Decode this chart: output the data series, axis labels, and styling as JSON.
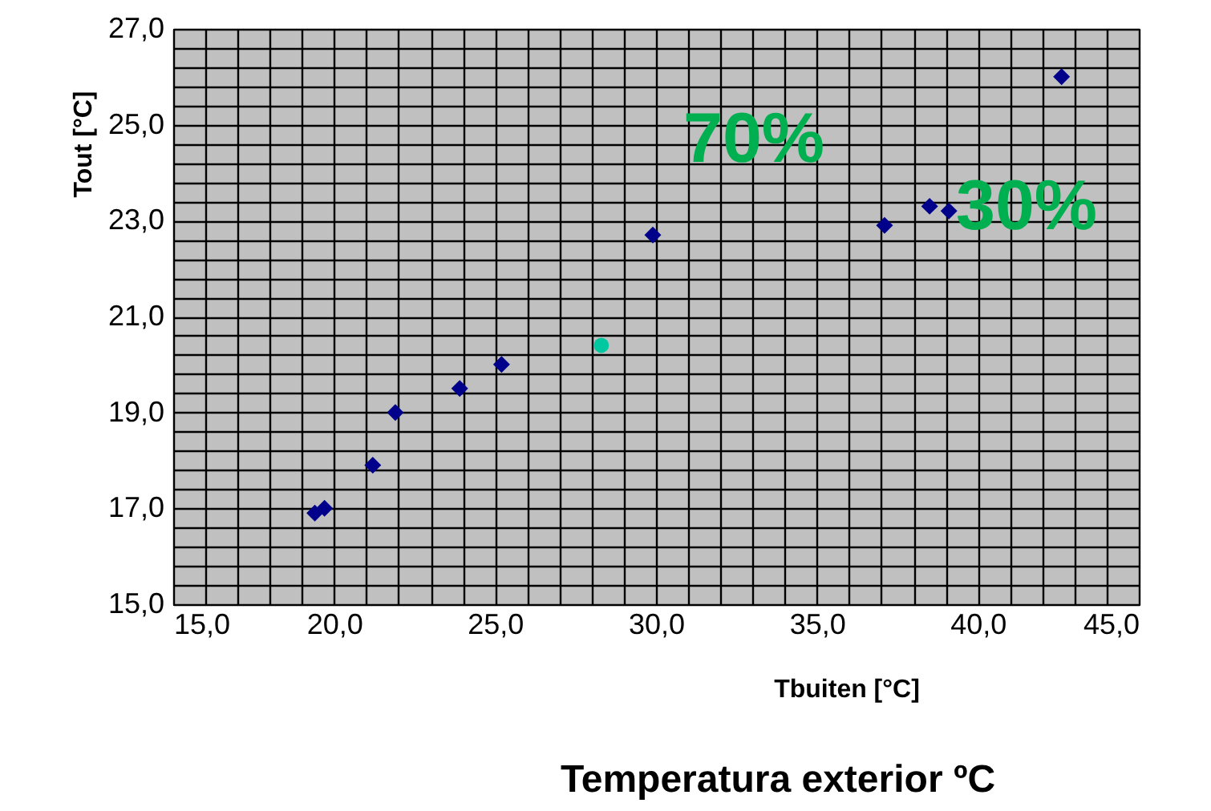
{
  "chart_data": {
    "type": "scatter",
    "xlabel": "Tbuiten [°C]",
    "ylabel": "Tout [°C]",
    "series": [
      {
        "color": "#00008b",
        "marker": "diamond",
        "x": [
          19.4,
          19.7,
          21.2,
          21.9,
          23.9,
          25.2,
          29.9,
          37.1,
          38.5,
          39.1,
          42.6
        ],
        "values": [
          16.9,
          17.0,
          17.9,
          19.0,
          19.5,
          20.0,
          22.7,
          22.9,
          23.3,
          23.2,
          26.0
        ]
      },
      {
        "color": "#00c8a0",
        "marker": "circle",
        "x": [
          28.3
        ],
        "values": [
          20.4
        ]
      }
    ],
    "annotations": [
      "70%",
      "30%",
      "Temperatura exterior ºC"
    ],
    "xlim": [
      15,
      45
    ],
    "ylim": [
      15,
      27
    ],
    "xticks": [
      {
        "value": 15,
        "label": "15,0"
      },
      {
        "value": 16,
        "label": null
      },
      {
        "value": 17,
        "label": null
      },
      {
        "value": 18,
        "label": null
      },
      {
        "value": 19,
        "label": null
      },
      {
        "value": 20,
        "label": "20,0"
      },
      {
        "value": 21,
        "label": null
      },
      {
        "value": 22,
        "label": null
      },
      {
        "value": 23,
        "label": null
      },
      {
        "value": 24,
        "label": null
      },
      {
        "value": 25,
        "label": "25,0"
      },
      {
        "value": 26,
        "label": null
      },
      {
        "value": 27,
        "label": null
      },
      {
        "value": 28,
        "label": null
      },
      {
        "value": 29,
        "label": null
      },
      {
        "value": 30,
        "label": "30,0"
      },
      {
        "value": 31,
        "label": null
      },
      {
        "value": 32,
        "label": null
      },
      {
        "value": 33,
        "label": null
      },
      {
        "value": 34,
        "label": null
      },
      {
        "value": 35,
        "label": "35,0"
      },
      {
        "value": 36,
        "label": null
      },
      {
        "value": 37,
        "label": null
      },
      {
        "value": 38,
        "label": null
      },
      {
        "value": 39,
        "label": null
      },
      {
        "value": 40,
        "label": "40,0"
      },
      {
        "value": 41,
        "label": null
      },
      {
        "value": 42,
        "label": null
      },
      {
        "value": 43,
        "label": null
      },
      {
        "value": 44,
        "label": null
      },
      {
        "value": 45,
        "label": "45,0"
      }
    ],
    "yticks": [
      {
        "value": 15,
        "label": "15,0"
      },
      {
        "value": 15.4,
        "label": null
      },
      {
        "value": 15.8,
        "label": null
      },
      {
        "value": 16.2,
        "label": null
      },
      {
        "value": 16.6,
        "label": null
      },
      {
        "value": 17,
        "label": "17,0"
      },
      {
        "value": 17.4,
        "label": null
      },
      {
        "value": 17.8,
        "label": null
      },
      {
        "value": 18.2,
        "label": null
      },
      {
        "value": 18.6,
        "label": null
      },
      {
        "value": 19,
        "label": "19,0"
      },
      {
        "value": 19.4,
        "label": null
      },
      {
        "value": 19.8,
        "label": null
      },
      {
        "value": 20.2,
        "label": null
      },
      {
        "value": 20.6,
        "label": null
      },
      {
        "value": 21,
        "label": "21,0"
      },
      {
        "value": 21.4,
        "label": null
      },
      {
        "value": 21.8,
        "label": null
      },
      {
        "value": 22.2,
        "label": null
      },
      {
        "value": 22.6,
        "label": null
      },
      {
        "value": 23,
        "label": "23,0"
      },
      {
        "value": 23.4,
        "label": null
      },
      {
        "value": 23.8,
        "label": null
      },
      {
        "value": 24.2,
        "label": null
      },
      {
        "value": 24.6,
        "label": null
      },
      {
        "value": 25,
        "label": "25,0"
      },
      {
        "value": 25.4,
        "label": null
      },
      {
        "value": 25.8,
        "label": null
      },
      {
        "value": 26.2,
        "label": null
      },
      {
        "value": 26.6,
        "label": null
      },
      {
        "value": 27,
        "label": "27,0"
      }
    ],
    "grid": true
  }
}
